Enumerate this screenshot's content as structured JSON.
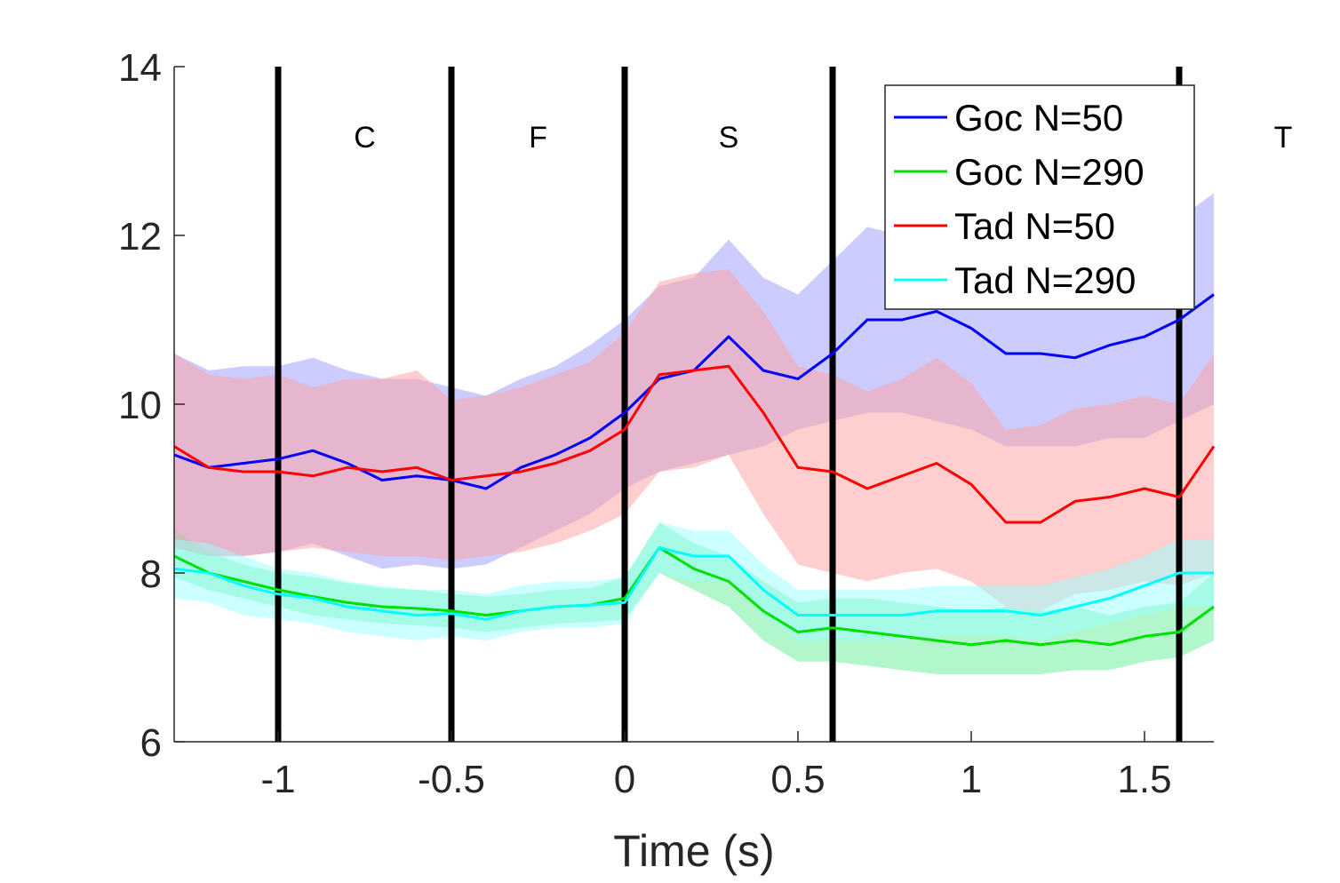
{
  "chart_data": {
    "type": "line",
    "title": "",
    "xlabel": "Time (s)",
    "ylabel": "",
    "xlim": [
      -1.3,
      1.7
    ],
    "ylim": [
      6,
      14
    ],
    "x_ticks": [
      -1,
      -0.5,
      0,
      0.5,
      1,
      1.5
    ],
    "x_tick_labels": [
      "-1",
      "-0.5",
      "0",
      "0.5",
      "1",
      "1.5"
    ],
    "y_ticks": [
      6,
      8,
      10,
      12,
      14
    ],
    "y_tick_labels": [
      "6",
      "8",
      "10",
      "12",
      "14"
    ],
    "grid": false,
    "legend_position": "top-right",
    "event_lines": [
      {
        "x": -1.0,
        "label": "C"
      },
      {
        "x": -0.5,
        "label": "F"
      },
      {
        "x": 0.0,
        "label": "S"
      },
      {
        "x": 0.6,
        "label": ""
      },
      {
        "x": 1.6,
        "label": "T"
      }
    ],
    "x": [
      -1.3,
      -1.2,
      -1.1,
      -1.0,
      -0.9,
      -0.8,
      -0.7,
      -0.6,
      -0.5,
      -0.4,
      -0.3,
      -0.2,
      -0.1,
      0.0,
      0.1,
      0.2,
      0.3,
      0.4,
      0.5,
      0.6,
      0.7,
      0.8,
      0.9,
      1.0,
      1.1,
      1.2,
      1.3,
      1.4,
      1.5,
      1.6,
      1.7
    ],
    "series": [
      {
        "name": "Goc N=50",
        "color": "#0000ff",
        "band_color": "#9999ff",
        "values": [
          9.4,
          9.25,
          9.3,
          9.35,
          9.45,
          9.3,
          9.1,
          9.15,
          9.1,
          9.0,
          9.25,
          9.4,
          9.6,
          9.9,
          10.3,
          10.4,
          10.8,
          10.4,
          10.3,
          10.6,
          11.0,
          11.0,
          11.1,
          10.9,
          10.6,
          10.6,
          10.55,
          10.7,
          10.8,
          11.0,
          11.3
        ],
        "lower": [
          8.3,
          8.2,
          8.2,
          8.25,
          8.35,
          8.2,
          8.05,
          8.1,
          8.05,
          8.1,
          8.3,
          8.5,
          8.7,
          9.0,
          9.2,
          9.3,
          9.4,
          9.5,
          9.7,
          9.8,
          9.9,
          9.9,
          9.8,
          9.7,
          9.5,
          9.5,
          9.5,
          9.6,
          9.6,
          9.8,
          10.0
        ],
        "upper": [
          10.6,
          10.4,
          10.45,
          10.45,
          10.55,
          10.4,
          10.3,
          10.3,
          10.2,
          10.1,
          10.3,
          10.45,
          10.7,
          11.0,
          11.4,
          11.5,
          11.95,
          11.5,
          11.3,
          11.7,
          12.1,
          12.0,
          12.2,
          12.0,
          11.8,
          11.8,
          11.6,
          11.8,
          12.0,
          12.2,
          12.5
        ]
      },
      {
        "name": "Goc N=290",
        "color": "#00e000",
        "band_color": "#66ee99",
        "values": [
          8.2,
          8.0,
          7.9,
          7.8,
          7.72,
          7.65,
          7.6,
          7.58,
          7.55,
          7.5,
          7.55,
          7.6,
          7.62,
          7.7,
          8.3,
          8.05,
          7.9,
          7.55,
          7.3,
          7.35,
          7.3,
          7.25,
          7.2,
          7.15,
          7.2,
          7.15,
          7.2,
          7.15,
          7.25,
          7.3,
          7.6
        ],
        "lower": [
          7.95,
          7.8,
          7.7,
          7.6,
          7.5,
          7.45,
          7.4,
          7.38,
          7.35,
          7.3,
          7.35,
          7.4,
          7.42,
          7.45,
          8.0,
          7.8,
          7.6,
          7.2,
          6.95,
          6.95,
          6.9,
          6.85,
          6.8,
          6.8,
          6.8,
          6.8,
          6.85,
          6.85,
          6.95,
          7.0,
          7.2
        ],
        "upper": [
          8.5,
          8.25,
          8.1,
          8.0,
          7.95,
          7.88,
          7.82,
          7.8,
          7.75,
          7.72,
          7.75,
          7.8,
          7.82,
          7.95,
          8.6,
          8.35,
          8.2,
          7.9,
          7.65,
          7.7,
          7.7,
          7.65,
          7.6,
          7.55,
          7.6,
          7.55,
          7.6,
          7.5,
          7.6,
          7.65,
          8.0
        ]
      },
      {
        "name": "Tad N=50",
        "color": "#ff0000",
        "band_color": "#ff9f9f",
        "values": [
          9.5,
          9.25,
          9.2,
          9.2,
          9.15,
          9.25,
          9.2,
          9.25,
          9.1,
          9.15,
          9.2,
          9.3,
          9.45,
          9.7,
          10.35,
          10.4,
          10.45,
          9.9,
          9.25,
          9.2,
          9.0,
          9.15,
          9.3,
          9.05,
          8.6,
          8.6,
          8.85,
          8.9,
          9.0,
          8.9,
          9.5
        ],
        "lower": [
          8.3,
          8.2,
          8.2,
          8.25,
          8.3,
          8.25,
          8.2,
          8.2,
          8.15,
          8.2,
          8.25,
          8.35,
          8.5,
          8.7,
          9.2,
          9.25,
          9.4,
          8.7,
          8.1,
          8.0,
          7.9,
          8.0,
          8.05,
          7.9,
          7.6,
          7.55,
          7.75,
          7.8,
          7.9,
          7.85,
          8.0
        ],
        "upper": [
          10.6,
          10.35,
          10.3,
          10.35,
          10.2,
          10.3,
          10.3,
          10.4,
          10.05,
          10.1,
          10.2,
          10.35,
          10.5,
          10.85,
          11.45,
          11.55,
          11.6,
          11.1,
          10.45,
          10.35,
          10.15,
          10.3,
          10.55,
          10.25,
          9.7,
          9.75,
          9.95,
          10.0,
          10.1,
          10.0,
          10.6
        ]
      },
      {
        "name": "Tad N=290",
        "color": "#00ffff",
        "band_color": "#99ffff",
        "values": [
          8.05,
          8.0,
          7.85,
          7.75,
          7.7,
          7.6,
          7.55,
          7.5,
          7.52,
          7.45,
          7.55,
          7.6,
          7.62,
          7.65,
          8.3,
          8.2,
          8.2,
          7.8,
          7.5,
          7.5,
          7.5,
          7.5,
          7.55,
          7.55,
          7.55,
          7.5,
          7.6,
          7.7,
          7.85,
          8.0,
          8.0
        ],
        "lower": [
          7.7,
          7.65,
          7.5,
          7.45,
          7.4,
          7.3,
          7.25,
          7.2,
          7.25,
          7.2,
          7.3,
          7.35,
          7.35,
          7.4,
          8.0,
          7.9,
          7.9,
          7.5,
          7.2,
          7.2,
          7.2,
          7.2,
          7.25,
          7.25,
          7.25,
          7.2,
          7.3,
          7.4,
          7.5,
          7.6,
          7.6
        ],
        "upper": [
          8.4,
          8.35,
          8.2,
          8.05,
          8.0,
          7.9,
          7.85,
          7.8,
          7.8,
          7.75,
          7.85,
          7.9,
          7.9,
          7.95,
          8.6,
          8.5,
          8.5,
          8.1,
          7.8,
          7.8,
          7.8,
          7.8,
          7.85,
          7.85,
          7.85,
          7.85,
          7.95,
          8.05,
          8.2,
          8.4,
          8.4
        ]
      }
    ]
  }
}
